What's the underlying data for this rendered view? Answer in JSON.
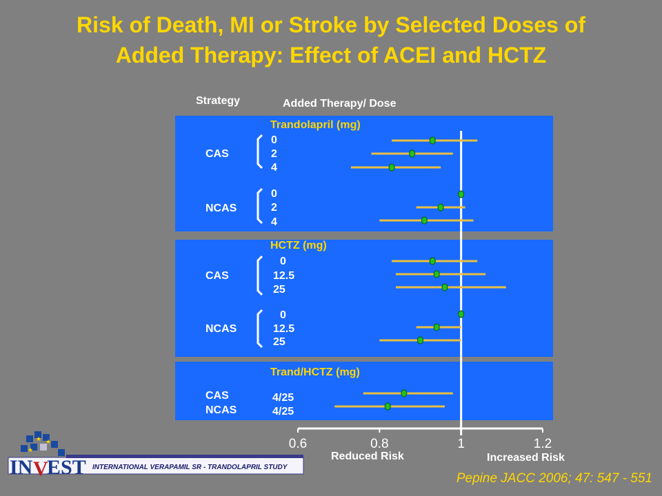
{
  "title_line1": "Risk of Death, MI or Stroke by Selected Doses of",
  "title_line2": "Added Therapy: Effect of ACEI and HCTZ",
  "header_strategy": "Strategy",
  "header_therapy": "Added Therapy/ Dose",
  "reduced_risk_label": "Reduced Risk",
  "increased_risk_label": "Increased Risk",
  "citation": "Pepine JACC 2006; 47: 547 - 551",
  "logo": {
    "mark": "INVEST",
    "banner": "INTERNATIONAL VERAPAMIL SR - TRANDOLAPRIL STUDY"
  },
  "colors": {
    "background": "#808080",
    "panel": "#1A6AFF",
    "title": "#FFD700",
    "ci_line": "#E8C040",
    "point": "#22C022",
    "reference_line": "#FFFFFF"
  },
  "groups": [
    {
      "drug": "Trandolapril (mg)",
      "strategies": [
        {
          "name": "CAS",
          "doses": [
            "0",
            "2",
            "4"
          ]
        },
        {
          "name": "NCAS",
          "doses": [
            "0",
            "2",
            "4"
          ]
        }
      ]
    },
    {
      "drug": "HCTZ (mg)",
      "strategies": [
        {
          "name": "CAS",
          "doses": [
            "0",
            "12.5",
            "25"
          ]
        },
        {
          "name": "NCAS",
          "doses": [
            "0",
            "12.5",
            "25"
          ]
        }
      ]
    },
    {
      "drug": "Trand/HCTZ (mg)",
      "strategies": [
        {
          "name": "CAS",
          "doses": [
            "4/25"
          ]
        },
        {
          "name": "NCAS",
          "doses": [
            "4/25"
          ]
        }
      ]
    }
  ],
  "chart_data": {
    "type": "forest",
    "title": "Risk of Death, MI or Stroke by Selected Doses of Added Therapy: Effect of ACEI and HCTZ",
    "xlabel": "",
    "x_ticks": [
      "0.6",
      "0.8",
      "1",
      "1.2"
    ],
    "xlim": [
      0.6,
      1.2
    ],
    "reference_value": 1,
    "annotations": [
      "Reduced Risk",
      "Increased Risk"
    ],
    "rows": [
      {
        "group": "Trandolapril (mg)",
        "strategy": "CAS",
        "dose": "0",
        "estimate": 0.93,
        "lower": 0.83,
        "upper": 1.04
      },
      {
        "group": "Trandolapril (mg)",
        "strategy": "CAS",
        "dose": "2",
        "estimate": 0.88,
        "lower": 0.78,
        "upper": 0.98
      },
      {
        "group": "Trandolapril (mg)",
        "strategy": "CAS",
        "dose": "4",
        "estimate": 0.83,
        "lower": 0.73,
        "upper": 0.95
      },
      {
        "group": "Trandolapril (mg)",
        "strategy": "NCAS",
        "dose": "0",
        "estimate": 1.0,
        "lower": 1.0,
        "upper": 1.0
      },
      {
        "group": "Trandolapril (mg)",
        "strategy": "NCAS",
        "dose": "2",
        "estimate": 0.95,
        "lower": 0.89,
        "upper": 1.01
      },
      {
        "group": "Trandolapril (mg)",
        "strategy": "NCAS",
        "dose": "4",
        "estimate": 0.91,
        "lower": 0.8,
        "upper": 1.03
      },
      {
        "group": "HCTZ (mg)",
        "strategy": "CAS",
        "dose": "0",
        "estimate": 0.93,
        "lower": 0.83,
        "upper": 1.04
      },
      {
        "group": "HCTZ (mg)",
        "strategy": "CAS",
        "dose": "12.5",
        "estimate": 0.94,
        "lower": 0.84,
        "upper": 1.06
      },
      {
        "group": "HCTZ (mg)",
        "strategy": "CAS",
        "dose": "25",
        "estimate": 0.96,
        "lower": 0.84,
        "upper": 1.11
      },
      {
        "group": "HCTZ (mg)",
        "strategy": "NCAS",
        "dose": "0",
        "estimate": 1.0,
        "lower": 1.0,
        "upper": 1.0
      },
      {
        "group": "HCTZ (mg)",
        "strategy": "NCAS",
        "dose": "12.5",
        "estimate": 0.94,
        "lower": 0.89,
        "upper": 1.0
      },
      {
        "group": "HCTZ (mg)",
        "strategy": "NCAS",
        "dose": "25",
        "estimate": 0.9,
        "lower": 0.8,
        "upper": 1.0
      },
      {
        "group": "Trand/HCTZ (mg)",
        "strategy": "CAS",
        "dose": "4/25",
        "estimate": 0.86,
        "lower": 0.76,
        "upper": 0.98
      },
      {
        "group": "Trand/HCTZ (mg)",
        "strategy": "NCAS",
        "dose": "4/25",
        "estimate": 0.82,
        "lower": 0.69,
        "upper": 0.96
      }
    ],
    "grid": false,
    "legend": "none"
  }
}
